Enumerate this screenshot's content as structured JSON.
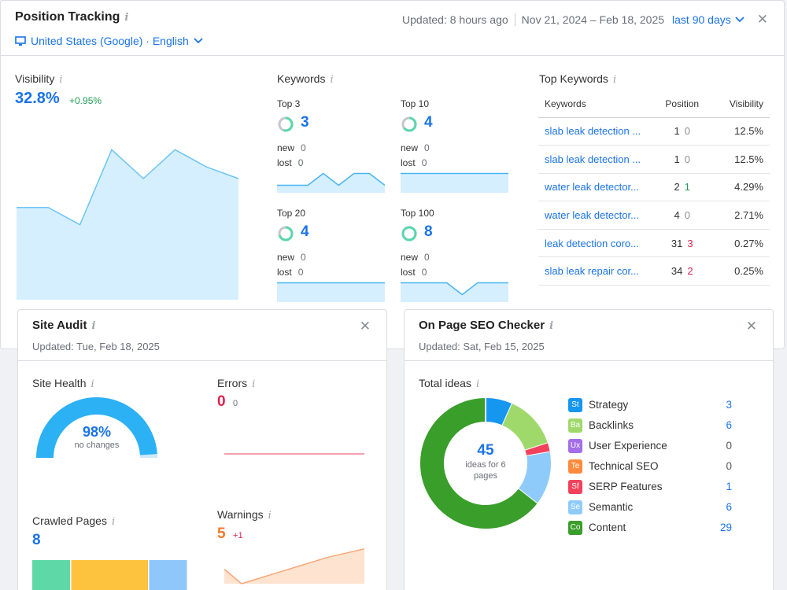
{
  "position_tracking": {
    "title": "Position Tracking",
    "location": "United States (Google) · English",
    "updated": "Updated: 8 hours ago",
    "date_range": "Nov 21, 2024 – Feb 18, 2025",
    "period": "last 90 days",
    "visibility": {
      "title": "Visibility",
      "value": "32.8%",
      "delta": "+0.95%",
      "series": [
        33.2,
        33.2,
        32.6,
        35.2,
        34.2,
        35.2,
        34.6,
        34.2
      ]
    },
    "keywords": {
      "title": "Keywords",
      "new_label": "new",
      "lost_label": "lost",
      "groups": [
        {
          "label": "Top 3",
          "value": "3",
          "new": "0",
          "lost": "0",
          "fill": 0.55,
          "series": [
            1,
            1,
            1,
            3,
            1,
            3,
            3,
            1
          ]
        },
        {
          "label": "Top 10",
          "value": "4",
          "new": "0",
          "lost": "0",
          "fill": 0.65,
          "series": [
            3,
            3,
            3,
            3,
            3,
            3,
            3,
            3
          ]
        },
        {
          "label": "Top 20",
          "value": "4",
          "new": "0",
          "lost": "0",
          "fill": 0.7,
          "series": [
            3,
            3,
            3,
            3,
            3,
            3,
            3,
            3
          ]
        },
        {
          "label": "Top 100",
          "value": "8",
          "new": "0",
          "lost": "0",
          "fill": 1.0,
          "series": [
            3,
            3,
            3,
            3,
            1,
            3,
            3,
            3
          ]
        }
      ]
    },
    "top_keywords": {
      "title": "Top Keywords",
      "headers": [
        "Keywords",
        "Position",
        "Visibility"
      ],
      "rows": [
        {
          "keyword": "slab leak detection ...",
          "position": "1",
          "change": "0",
          "dir": "zero",
          "visibility": "12.5%"
        },
        {
          "keyword": "slab leak detection ...",
          "position": "1",
          "change": "0",
          "dir": "zero",
          "visibility": "12.5%"
        },
        {
          "keyword": "water leak detector...",
          "position": "2",
          "change": "1",
          "dir": "up",
          "visibility": "4.29%"
        },
        {
          "keyword": "water leak detector...",
          "position": "4",
          "change": "0",
          "dir": "zero",
          "visibility": "2.71%"
        },
        {
          "keyword": "leak detection coro...",
          "position": "31",
          "change": "3",
          "dir": "down",
          "visibility": "0.27%"
        },
        {
          "keyword": "slab leak repair cor...",
          "position": "34",
          "change": "2",
          "dir": "down",
          "visibility": "0.25%"
        }
      ]
    }
  },
  "site_audit": {
    "title": "Site Audit",
    "updated": "Updated: Tue, Feb 18, 2025",
    "site_health": {
      "title": "Site Health",
      "value": "98%",
      "sub": "no changes",
      "fraction": 0.98
    },
    "errors": {
      "title": "Errors",
      "value": "0",
      "delta": "0"
    },
    "crawled": {
      "title": "Crawled Pages",
      "value": "8",
      "segments": [
        {
          "share": 0.25,
          "color": "#5fd8a8"
        },
        {
          "share": 0.5,
          "color": "#fdc23e"
        },
        {
          "share": 0.25,
          "color": "#8fc7fb"
        }
      ]
    },
    "warnings": {
      "title": "Warnings",
      "value": "5",
      "delta": "+1",
      "series": [
        4,
        4.3,
        4.6,
        4.9,
        5
      ]
    }
  },
  "on_page": {
    "title": "On Page SEO Checker",
    "updated": "Updated: Sat, Feb 15, 2025",
    "total_title": "Total ideas",
    "total_value": "45",
    "total_sub_1": "ideas for 6",
    "total_sub_2": "pages",
    "categories": [
      {
        "badge": "St",
        "label": "Strategy",
        "count": "3",
        "value": 3,
        "color": "#1596ef"
      },
      {
        "badge": "Ba",
        "label": "Backlinks",
        "count": "6",
        "value": 6,
        "color": "#9fd96c"
      },
      {
        "badge": "Ux",
        "label": "User Experience",
        "count": "0",
        "value": 0,
        "color": "#a46ee8"
      },
      {
        "badge": "Te",
        "label": "Technical SEO",
        "count": "0",
        "value": 0,
        "color": "#ff8a3d"
      },
      {
        "badge": "Sf",
        "label": "SERP Features",
        "count": "1",
        "value": 1,
        "color": "#f2425b"
      },
      {
        "badge": "Se",
        "label": "Semantic",
        "count": "6",
        "value": 6,
        "color": "#8fcbfa"
      },
      {
        "badge": "Co",
        "label": "Content",
        "count": "29",
        "value": 29,
        "color": "#3a9e2a"
      }
    ]
  },
  "icons": {
    "info": "info-icon",
    "close": "close-icon",
    "monitor": "monitor-icon",
    "chevron": "chevron-down-icon"
  }
}
